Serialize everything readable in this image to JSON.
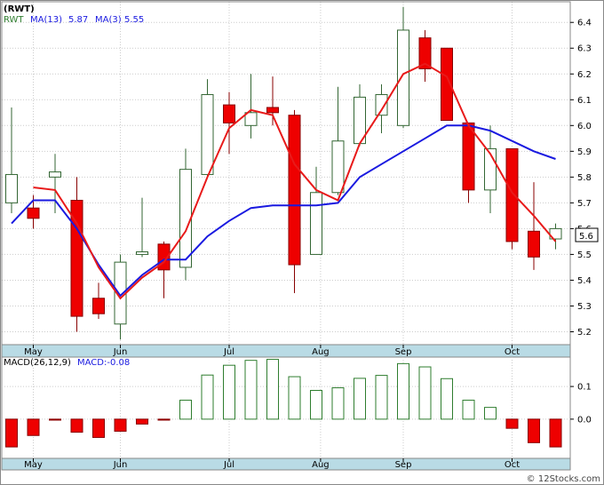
{
  "colors": {
    "up_border": "#336633",
    "down_fill": "#ee0000",
    "down_border": "#880000",
    "ma_fast": "#e81a1a",
    "ma_slow": "#1a1ae0",
    "macd_pos": "#2e7d2e",
    "macd_neg_fill": "#ee0000",
    "axis_band": "#b9dbe5",
    "grid": "#cccccc",
    "frame": "#888888"
  },
  "header": {
    "ticker": "(RWT)",
    "legend_ticker": "RWT",
    "ma13_label": "MA(13)",
    "ma13_value": "5.87",
    "ma3_label": "MA(3)",
    "ma3_value": "5.55"
  },
  "macd_header": {
    "label": "MACD(26,12,9)",
    "value_label": "MACD:-0.08"
  },
  "current_price_label": "5.6",
  "watermark": "© 12Stocks.com",
  "chart_data": [
    {
      "type": "candlestick",
      "ticker": "RWT",
      "x_labels": [
        "May",
        "Jun",
        "Jul",
        "Aug",
        "Sep",
        "Oct"
      ],
      "y_ticks": [
        "5.2",
        "5.3",
        "5.4",
        "5.5",
        "5.6",
        "5.7",
        "5.8",
        "5.9",
        "6.0",
        "6.1",
        "6.2",
        "6.3",
        "6.4"
      ],
      "ylim": [
        5.15,
        6.48
      ],
      "grid": true,
      "candles": [
        {
          "o": 5.7,
          "h": 6.07,
          "l": 5.66,
          "c": 5.81
        },
        {
          "o": 5.68,
          "h": 5.73,
          "l": 5.6,
          "c": 5.64
        },
        {
          "o": 5.8,
          "h": 5.89,
          "l": 5.66,
          "c": 5.82
        },
        {
          "o": 5.71,
          "h": 5.8,
          "l": 5.2,
          "c": 5.26
        },
        {
          "o": 5.33,
          "h": 5.39,
          "l": 5.25,
          "c": 5.27
        },
        {
          "o": 5.23,
          "h": 5.5,
          "l": 5.17,
          "c": 5.47
        },
        {
          "o": 5.5,
          "h": 5.72,
          "l": 5.49,
          "c": 5.51
        },
        {
          "o": 5.54,
          "h": 5.55,
          "l": 5.33,
          "c": 5.44
        },
        {
          "o": 5.45,
          "h": 5.91,
          "l": 5.4,
          "c": 5.83
        },
        {
          "o": 5.81,
          "h": 6.18,
          "l": 5.8,
          "c": 6.12
        },
        {
          "o": 6.08,
          "h": 6.13,
          "l": 5.89,
          "c": 6.01
        },
        {
          "o": 6.0,
          "h": 6.2,
          "l": 5.95,
          "c": 6.05
        },
        {
          "o": 6.07,
          "h": 6.19,
          "l": 6.0,
          "c": 6.05
        },
        {
          "o": 6.04,
          "h": 6.06,
          "l": 5.35,
          "c": 5.46
        },
        {
          "o": 5.5,
          "h": 5.84,
          "l": 5.5,
          "c": 5.74
        },
        {
          "o": 5.74,
          "h": 6.15,
          "l": 5.73,
          "c": 5.94
        },
        {
          "o": 5.93,
          "h": 6.16,
          "l": 5.92,
          "c": 6.11
        },
        {
          "o": 6.04,
          "h": 6.16,
          "l": 5.97,
          "c": 6.12
        },
        {
          "o": 6.0,
          "h": 6.46,
          "l": 5.99,
          "c": 6.37
        },
        {
          "o": 6.34,
          "h": 6.37,
          "l": 6.17,
          "c": 6.22
        },
        {
          "o": 6.3,
          "h": 6.3,
          "l": 6.02,
          "c": 6.02
        },
        {
          "o": 6.01,
          "h": 6.01,
          "l": 5.7,
          "c": 5.75
        },
        {
          "o": 5.75,
          "h": 6.0,
          "l": 5.66,
          "c": 5.91
        },
        {
          "o": 5.91,
          "h": 5.91,
          "l": 5.52,
          "c": 5.55
        },
        {
          "o": 5.59,
          "h": 5.78,
          "l": 5.44,
          "c": 5.49
        },
        {
          "o": 5.56,
          "h": 5.62,
          "l": 5.52,
          "c": 5.6
        }
      ],
      "series": [
        {
          "name": "MA(3)",
          "values": [
            null,
            5.76,
            5.75,
            5.62,
            5.45,
            5.33,
            5.41,
            5.47,
            5.59,
            5.8,
            5.99,
            6.06,
            6.04,
            5.85,
            5.75,
            5.71,
            5.93,
            6.06,
            6.2,
            6.24,
            6.19,
            6.0,
            5.89,
            5.74,
            5.65,
            5.55
          ]
        },
        {
          "name": "MA(13)",
          "values": [
            5.62,
            5.71,
            5.71,
            5.6,
            5.46,
            5.34,
            5.42,
            5.48,
            5.48,
            5.57,
            5.63,
            5.68,
            5.69,
            5.69,
            5.69,
            5.7,
            5.8,
            5.85,
            5.9,
            5.95,
            6.0,
            6.0,
            5.98,
            5.94,
            5.9,
            5.87
          ]
        }
      ]
    },
    {
      "type": "bar",
      "name": "MACD(26,12,9)",
      "y_ticks": [
        "0.0",
        "0.1"
      ],
      "ylim": [
        -0.12,
        0.19
      ],
      "values": [
        -0.085,
        -0.05,
        -0.003,
        -0.04,
        -0.056,
        -0.037,
        -0.015,
        -0.003,
        0.058,
        0.135,
        0.165,
        0.18,
        0.183,
        0.13,
        0.088,
        0.096,
        0.125,
        0.134,
        0.17,
        0.16,
        0.124,
        0.058,
        0.036,
        -0.028,
        -0.072,
        -0.085
      ]
    }
  ]
}
